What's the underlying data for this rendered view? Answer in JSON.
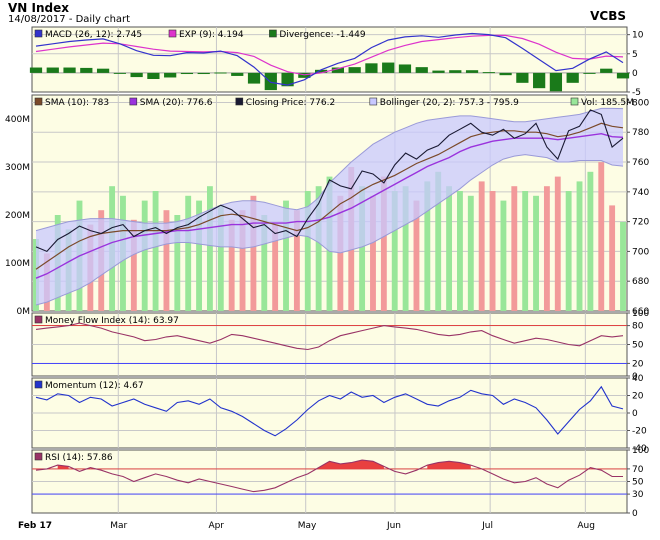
{
  "header": {
    "title": "VN Index",
    "subtitle": "14/08/2017 - Daily chart",
    "brand": "VCBS"
  },
  "colors": {
    "panel_bg": "#fdfde4",
    "grid": "#c8c8c8",
    "macd": "#3333cc",
    "signal": "#dd33cc",
    "divergence": "#1a7a1a",
    "sma10": "#7b4a2a",
    "sma20": "#9a33dd",
    "close": "#1a1a33",
    "bollinger_fill": "#c8c8ff",
    "bollinger_line": "#9a9ad8",
    "vol_up": "#99e699",
    "vol_down": "#f29a9a",
    "mfi": "#993366",
    "momentum": "#2233cc",
    "rsi": "#993366",
    "ref_red": "#e03030",
    "ref_blue": "#3333ff",
    "overbought_fill": "#e84040"
  },
  "chart_data": [
    {
      "type": "line",
      "name": "macd-panel",
      "x_labels": [
        "Feb 17",
        "Mar",
        "Apr",
        "May",
        "Jun",
        "Jul",
        "Aug"
      ],
      "legend": [
        {
          "label": "MACD (26, 12): 2.745",
          "color": "#3333cc"
        },
        {
          "label": "EXP (9): 4.194",
          "color": "#dd33cc"
        },
        {
          "label": "Divergence: -1.449",
          "color": "#1a7a1a"
        }
      ],
      "ylim": [
        -5,
        12
      ],
      "yticks": [
        10,
        5,
        0,
        -5
      ],
      "series": [
        {
          "name": "MACD",
          "values": [
            7,
            7.6,
            8.2,
            8.6,
            8.9,
            7.6,
            5.8,
            4.6,
            4.5,
            5.3,
            5.2,
            5.7,
            4.5,
            1.5,
            -2.5,
            -3.2,
            -1.8,
            0.8,
            2.5,
            3.8,
            6.6,
            8.6,
            9.4,
            9.7,
            9.3,
            9.9,
            10.3,
            10,
            9.2,
            6.4,
            3.5,
            0.6,
            1.2,
            3.6,
            5.5,
            2.7
          ]
        },
        {
          "name": "EXP",
          "values": [
            5.6,
            6.2,
            6.8,
            7.3,
            7.8,
            7.6,
            6.9,
            6.2,
            5.7,
            5.6,
            5.5,
            5.6,
            5.3,
            4.3,
            2.0,
            0.3,
            -0.5,
            0.0,
            1.1,
            2.3,
            4.1,
            5.9,
            7.2,
            8.2,
            8.7,
            9.2,
            9.6,
            9.8,
            9.8,
            9.0,
            7.5,
            5.4,
            3.8,
            3.6,
            4.4,
            4.19
          ]
        },
        {
          "name": "Divergence",
          "values": [
            1.4,
            1.4,
            1.4,
            1.3,
            1.1,
            0.0,
            -1.1,
            -1.6,
            -1.2,
            -0.3,
            -0.3,
            0.1,
            -0.8,
            -2.8,
            -4.5,
            -3.5,
            -1.3,
            0.8,
            1.4,
            1.5,
            2.5,
            2.7,
            2.2,
            1.5,
            0.6,
            0.7,
            0.7,
            0.2,
            -0.6,
            -2.6,
            -4.0,
            -4.8,
            -2.6,
            0.0,
            1.1,
            -1.449
          ]
        }
      ]
    },
    {
      "type": "line",
      "name": "price-panel",
      "legend": [
        {
          "label": "SMA (10): 783",
          "color": "#7b4a2a"
        },
        {
          "label": "SMA (20): 776.6",
          "color": "#9a33dd"
        },
        {
          "label": "Closing Price: 776.2",
          "color": "#1a1a33"
        },
        {
          "label": "Bollinger (20, 2): 757.3 - 795.9",
          "color": "#c8c8ff"
        },
        {
          "label": "Vol: 185.5M",
          "color": "#99e699"
        }
      ],
      "ylim": [
        660,
        805
      ],
      "yticks": [
        800,
        780,
        760,
        740,
        720,
        700,
        680,
        660
      ],
      "volume_ticks": [
        "400M",
        "300M",
        "200M",
        "100M",
        "0M"
      ],
      "volume_max": 450,
      "series": [
        {
          "name": "Closing Price",
          "values": [
            703,
            700,
            708,
            712,
            717,
            714,
            712,
            716,
            718,
            710,
            714,
            716,
            712,
            716,
            718,
            723,
            727,
            731,
            728,
            722,
            716,
            718,
            712,
            714,
            710,
            722,
            732,
            748,
            744,
            742,
            754,
            752,
            746,
            758,
            766,
            762,
            768,
            771,
            778,
            782,
            786,
            780,
            778,
            782,
            776,
            779,
            786,
            770,
            762,
            781,
            784,
            795,
            792,
            770,
            776
          ]
        },
        {
          "name": "SMA (10)",
          "values": [
            688,
            693,
            698,
            703,
            707,
            710,
            712,
            713,
            714,
            714,
            714,
            714,
            714,
            715,
            716,
            718,
            721,
            724,
            725,
            724,
            722,
            720,
            718,
            716,
            714,
            716,
            720,
            726,
            732,
            736,
            741,
            745,
            748,
            751,
            755,
            759,
            762,
            765,
            769,
            773,
            777,
            779,
            780,
            781,
            781,
            780,
            780,
            779,
            777,
            778,
            780,
            783,
            786,
            784,
            783
          ]
        },
        {
          "name": "SMA (20)",
          "values": [
            682,
            685,
            689,
            693,
            697,
            700,
            703,
            706,
            708,
            710,
            711,
            712,
            713,
            714,
            714,
            715,
            716,
            717,
            718,
            718,
            719,
            719,
            719,
            719,
            720,
            720,
            721,
            723,
            726,
            729,
            733,
            737,
            741,
            745,
            749,
            753,
            757,
            760,
            763,
            767,
            770,
            772,
            774,
            775,
            776,
            776,
            776,
            776,
            775,
            776,
            777,
            778,
            779,
            777,
            776.6
          ]
        },
        {
          "name": "Bollinger Upper",
          "values": [
            714,
            716,
            718,
            720,
            721,
            722,
            722,
            722,
            721,
            720,
            719,
            719,
            719,
            720,
            722,
            725,
            728,
            731,
            733,
            734,
            734,
            733,
            731,
            729,
            728,
            730,
            736,
            746,
            753,
            760,
            766,
            772,
            776,
            780,
            783,
            786,
            788,
            789,
            790,
            791,
            791,
            790,
            789,
            788,
            787,
            787,
            788,
            789,
            790,
            791,
            792,
            794,
            796,
            796,
            795.9
          ]
        },
        {
          "name": "Bollinger Lower",
          "values": [
            664,
            666,
            669,
            672,
            675,
            679,
            684,
            689,
            694,
            698,
            701,
            703,
            705,
            706,
            706,
            705,
            704,
            703,
            703,
            702,
            703,
            705,
            707,
            709,
            711,
            710,
            706,
            700,
            699,
            701,
            703,
            706,
            710,
            714,
            718,
            722,
            727,
            732,
            737,
            742,
            748,
            753,
            758,
            762,
            764,
            765,
            764,
            763,
            760,
            760,
            761,
            761,
            761,
            758,
            757.3
          ]
        },
        {
          "name": "Volume (M)",
          "values": [
            150,
            120,
            200,
            170,
            230,
            180,
            210,
            260,
            240,
            190,
            230,
            250,
            210,
            200,
            240,
            230,
            260,
            220,
            190,
            210,
            240,
            200,
            180,
            230,
            210,
            250,
            260,
            280,
            240,
            300,
            260,
            240,
            280,
            250,
            260,
            230,
            270,
            290,
            260,
            250,
            240,
            270,
            250,
            230,
            260,
            250,
            240,
            260,
            280,
            250,
            270,
            290,
            310,
            220,
            185.5
          ]
        }
      ]
    },
    {
      "type": "line",
      "name": "mfi-panel",
      "legend": [
        {
          "label": "Money Flow Index (14): 63.97",
          "color": "#993366"
        }
      ],
      "ylim": [
        0,
        100
      ],
      "yticks": [
        100,
        80,
        50,
        20,
        0
      ],
      "reference": [
        {
          "value": 80,
          "color": "#e03030"
        },
        {
          "value": 20,
          "color": "#3333ff"
        }
      ],
      "values": [
        74,
        76,
        78,
        80,
        84,
        80,
        76,
        70,
        66,
        62,
        56,
        58,
        62,
        64,
        60,
        56,
        52,
        58,
        66,
        64,
        60,
        56,
        52,
        48,
        44,
        42,
        46,
        56,
        64,
        68,
        72,
        76,
        80,
        78,
        76,
        74,
        70,
        66,
        64,
        66,
        70,
        72,
        64,
        58,
        52,
        56,
        60,
        58,
        54,
        50,
        48,
        56,
        64,
        62,
        63.97
      ]
    },
    {
      "type": "line",
      "name": "momentum-panel",
      "legend": [
        {
          "label": "Momentum (12): 4.67",
          "color": "#2233cc"
        }
      ],
      "ylim": [
        -40,
        40
      ],
      "yticks": [
        40,
        20,
        0,
        -20,
        -40
      ],
      "values": [
        18,
        15,
        22,
        20,
        12,
        18,
        16,
        8,
        12,
        16,
        10,
        6,
        2,
        12,
        14,
        10,
        16,
        6,
        2,
        -4,
        -12,
        -20,
        -26,
        -18,
        -8,
        4,
        14,
        20,
        16,
        24,
        18,
        20,
        12,
        18,
        22,
        16,
        10,
        8,
        14,
        18,
        26,
        22,
        20,
        10,
        16,
        12,
        6,
        -8,
        -24,
        -10,
        4,
        14,
        30,
        8,
        4.67
      ]
    },
    {
      "type": "line",
      "name": "rsi-panel",
      "legend": [
        {
          "label": "RSI (14): 57.86",
          "color": "#993366"
        }
      ],
      "ylim": [
        0,
        100
      ],
      "yticks": [
        100,
        70,
        50,
        30,
        0
      ],
      "reference": [
        {
          "value": 70,
          "color": "#e03030"
        },
        {
          "value": 30,
          "color": "#3333ff"
        }
      ],
      "values": [
        68,
        70,
        76,
        74,
        66,
        72,
        68,
        62,
        58,
        50,
        56,
        62,
        58,
        52,
        48,
        54,
        50,
        46,
        42,
        38,
        34,
        36,
        40,
        48,
        56,
        62,
        72,
        82,
        78,
        80,
        84,
        82,
        74,
        66,
        62,
        68,
        76,
        80,
        82,
        80,
        76,
        70,
        62,
        54,
        48,
        50,
        56,
        46,
        40,
        52,
        60,
        72,
        68,
        58,
        57.86
      ]
    }
  ]
}
